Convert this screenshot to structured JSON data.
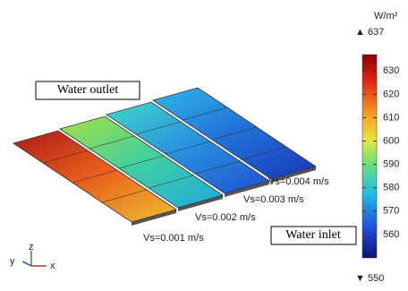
{
  "labels": {
    "outlet": "Water outlet",
    "inlet": "Water inlet"
  },
  "velocities": [
    "Vs=0.004 m/s",
    "Vs=0.003 m/s",
    "Vs=0.002 m/s",
    "Vs=0.001 m/s"
  ],
  "colorbar": {
    "unit": "W/m²",
    "max": 637,
    "min": 550,
    "ticks": [
      630,
      620,
      610,
      600,
      590,
      580,
      570,
      560
    ]
  },
  "axes": {
    "z": "z",
    "y": "y",
    "x": "x"
  }
}
